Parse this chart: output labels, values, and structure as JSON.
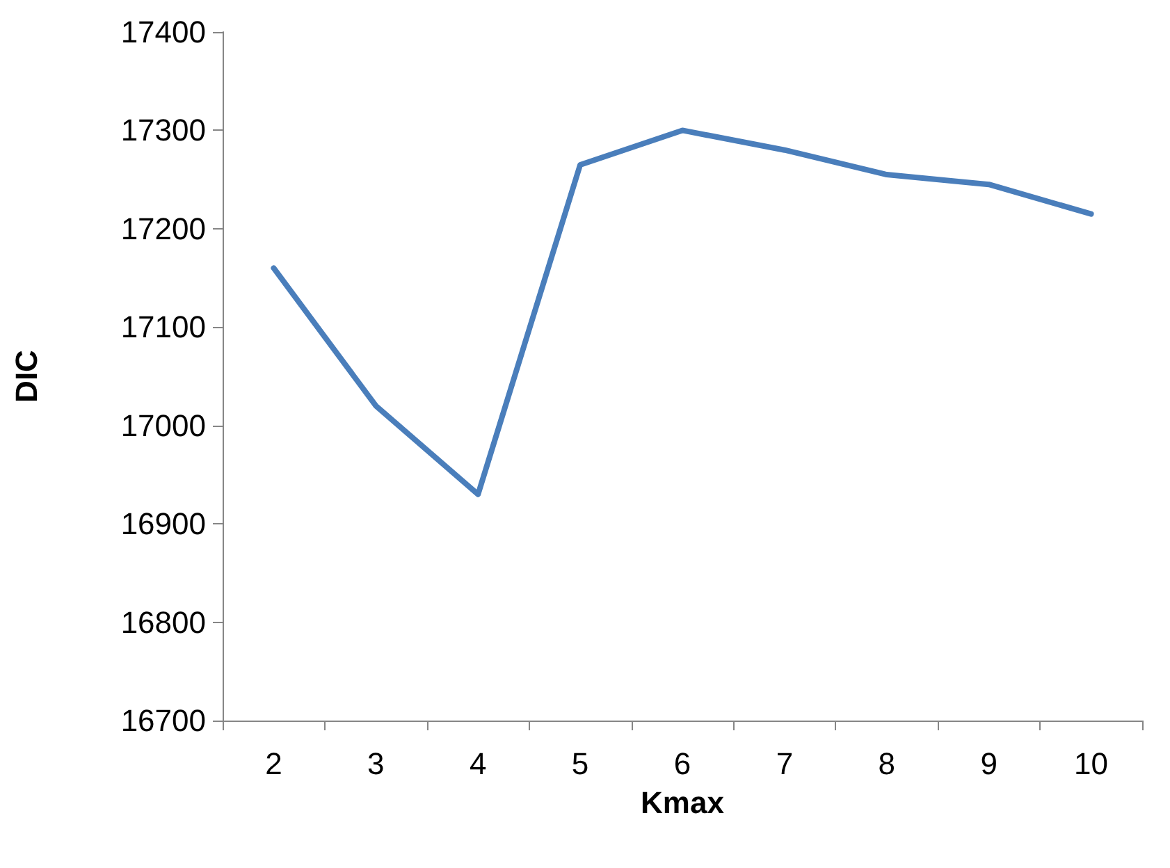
{
  "chart_data": {
    "type": "line",
    "xlabel": "Kmax",
    "ylabel": "DIC",
    "categories": [
      "2",
      "3",
      "4",
      "5",
      "6",
      "7",
      "8",
      "9",
      "10"
    ],
    "series": [
      {
        "color": "#4a7ebb",
        "values": [
          17160,
          17020,
          16930,
          17265,
          17300,
          17280,
          17255,
          17245,
          17215
        ]
      }
    ],
    "ylim": [
      16700,
      17400
    ],
    "yticks": [
      16700,
      16800,
      16900,
      17000,
      17100,
      17200,
      17300,
      17400
    ],
    "grid": false,
    "marker": "none",
    "line_style": "solid"
  }
}
